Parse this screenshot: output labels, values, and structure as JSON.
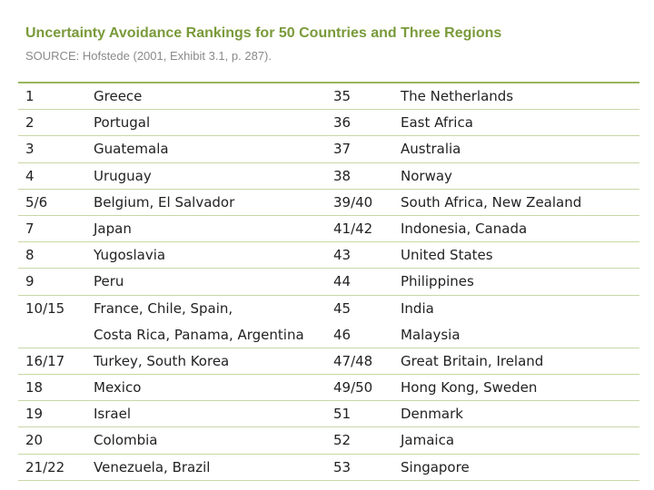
{
  "header": {
    "title": "Uncertainty Avoidance Rankings for 50 Countries and Three Regions",
    "source": "SOURCE: Hofstede (2001, Exhibit 3.1, p. 287)."
  },
  "rows": [
    {
      "r1": "1",
      "n1": "Greece",
      "r2": "35",
      "n2": "The Netherlands"
    },
    {
      "r1": "2",
      "n1": "Portugal",
      "r2": "36",
      "n2": "East Africa"
    },
    {
      "r1": "3",
      "n1": "Guatemala",
      "r2": "37",
      "n2": "Australia"
    },
    {
      "r1": "4",
      "n1": "Uruguay",
      "r2": "38",
      "n2": "Norway"
    },
    {
      "r1": "5/6",
      "n1": "Belgium, El Salvador",
      "r2": "39/40",
      "n2": "South Africa, New Zealand"
    },
    {
      "r1": "7",
      "n1": "Japan",
      "r2": "41/42",
      "n2": "Indonesia, Canada"
    },
    {
      "r1": "8",
      "n1": "Yugoslavia",
      "r2": "43",
      "n2": "United States"
    },
    {
      "r1": "9",
      "n1": "Peru",
      "r2": "44",
      "n2": "Philippines"
    },
    {
      "r1": "10/15",
      "n1": "France, Chile, Spain,",
      "r2": "45",
      "n2": "India"
    },
    {
      "r1": "",
      "n1": "Costa Rica, Panama, Argentina",
      "r2": "46",
      "n2": "Malaysia"
    },
    {
      "r1": "16/17",
      "n1": "Turkey, South Korea",
      "r2": "47/48",
      "n2": "Great Britain, Ireland"
    },
    {
      "r1": "18",
      "n1": "Mexico",
      "r2": "49/50",
      "n2": "Hong Kong, Sweden"
    },
    {
      "r1": "19",
      "n1": "Israel",
      "r2": "51",
      "n2": "Denmark"
    },
    {
      "r1": "20",
      "n1": "Colombia",
      "r2": "52",
      "n2": "Jamaica"
    },
    {
      "r1": "21/22",
      "n1": "Venezuela, Brazil",
      "r2": "53",
      "n2": "Singapore"
    }
  ]
}
